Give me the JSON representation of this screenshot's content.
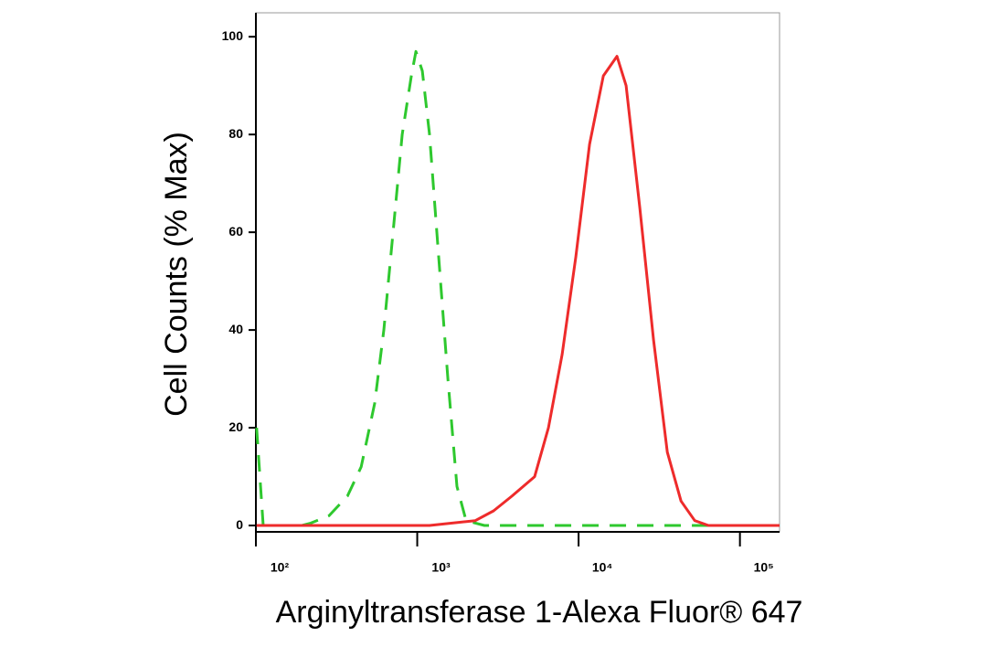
{
  "chart_data": {
    "type": "line",
    "xlabel": "Arginyltransferase 1-Alexa Fluor® 647",
    "ylabel": "Cell Counts (% Max)",
    "xscale": "log",
    "xlim": [
      100,
      176000
    ],
    "ylim": [
      -1.3,
      104.9
    ],
    "xticks": [
      {
        "value": 100,
        "label": "10²"
      },
      {
        "value": 1000,
        "label": "10³"
      },
      {
        "value": 10000,
        "label": "10⁴"
      },
      {
        "value": 100000,
        "label": "10⁵"
      }
    ],
    "yticks": [
      0,
      20,
      40,
      60,
      80,
      100
    ],
    "series": [
      {
        "color": "#2ec82e",
        "dash": true,
        "x": [
          101,
          111,
          192,
          219,
          284,
          369,
          449,
          545,
          621,
          708,
          807,
          919,
          981,
          1075,
          1192,
          1358,
          1548,
          1762,
          2009,
          2606,
          176000
        ],
        "values": [
          20,
          0,
          0,
          0.5,
          2,
          6,
          12,
          25,
          40,
          60,
          80,
          92,
          97,
          93,
          80,
          55,
          30,
          8,
          1,
          0,
          0
        ]
      },
      {
        "color": "#ee2b2b",
        "dash": false,
        "x": [
          101,
          1192,
          2291,
          2972,
          3855,
          5343,
          6501,
          7907,
          9616,
          11700,
          14230,
          17300,
          19690,
          23970,
          29150,
          35470,
          43150,
          52480,
          63830,
          176000
        ],
        "values": [
          0,
          0,
          1,
          3,
          6,
          10,
          20,
          35,
          55,
          78,
          92,
          96,
          90,
          65,
          38,
          15,
          5,
          1,
          0,
          0
        ]
      }
    ]
  }
}
